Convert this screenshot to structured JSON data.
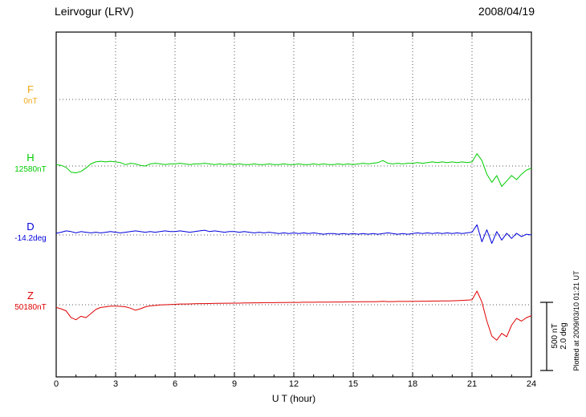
{
  "header": {
    "station": "Leirvogur (LRV)",
    "date": "2008/04/19"
  },
  "axes": {
    "xlabel": "U T (hour)",
    "xticks": [
      0,
      3,
      6,
      9,
      12,
      15,
      18,
      21,
      24
    ]
  },
  "traces": [
    {
      "label": "F",
      "value_label": "0nT",
      "color": "#f0a818"
    },
    {
      "label": "H",
      "value_label": "12580nT",
      "color": "#00cc00"
    },
    {
      "label": "D",
      "value_label": "-14.2deg",
      "color": "#0000dd"
    },
    {
      "label": "Z",
      "value_label": "50180nT",
      "color": "#e00000"
    }
  ],
  "scale_bar": {
    "line1": "500 nT",
    "line2": "2.0 deg"
  },
  "footer_note": "Plotted at 2009/03/10 01:21 UT",
  "chart_data": {
    "type": "line",
    "title": "Leirvogur (LRV) magnetogram 2008/04/19",
    "xlabel": "U T (hour)",
    "x_range": [
      0,
      24
    ],
    "x_step_hours": 0.25,
    "xticks": [
      0,
      3,
      6,
      9,
      12,
      15,
      18,
      21,
      24
    ],
    "grid": "dotted",
    "scale": {
      "nT_per_bar": 500,
      "deg_per_bar": 2.0
    },
    "series": [
      {
        "name": "F",
        "unit": "nT",
        "base_value": 0,
        "color": "#f0a818",
        "values": []
      },
      {
        "name": "H",
        "unit": "nT",
        "base_value": 12580,
        "color": "#00cc00",
        "values": [
          10,
          5,
          -10,
          -45,
          -50,
          -40,
          -15,
          15,
          30,
          35,
          30,
          35,
          30,
          25,
          10,
          20,
          15,
          5,
          0,
          15,
          20,
          15,
          10,
          15,
          15,
          20,
          15,
          10,
          15,
          15,
          20,
          15,
          10,
          15,
          10,
          15,
          10,
          15,
          10,
          10,
          15,
          10,
          10,
          15,
          10,
          10,
          15,
          10,
          10,
          15,
          10,
          10,
          15,
          10,
          15,
          10,
          10,
          15,
          10,
          15,
          10,
          15,
          20,
          15,
          20,
          25,
          40,
          20,
          15,
          20,
          15,
          20,
          20,
          25,
          20,
          25,
          30,
          25,
          30,
          25,
          30,
          25,
          30,
          25,
          30,
          90,
          40,
          -60,
          -120,
          -70,
          -150,
          -110,
          -70,
          -100,
          -60,
          -30,
          -15
        ]
      },
      {
        "name": "D",
        "unit": "deg",
        "base_value": -14.2,
        "color": "#0000dd",
        "values": [
          0.05,
          0.08,
          0.12,
          0.1,
          0.06,
          0.1,
          0.08,
          0.06,
          0.08,
          0.06,
          0.08,
          0.1,
          0.08,
          0.06,
          0.08,
          0.1,
          0.12,
          0.1,
          0.08,
          0.1,
          0.08,
          0.1,
          0.12,
          0.1,
          0.1,
          0.12,
          0.1,
          0.08,
          0.1,
          0.12,
          0.14,
          0.1,
          0.12,
          0.1,
          0.08,
          0.1,
          0.1,
          0.08,
          0.1,
          0.08,
          0.06,
          0.08,
          0.06,
          0.08,
          0.06,
          0.04,
          0.06,
          0.04,
          0.06,
          0.04,
          0.06,
          0.04,
          0.06,
          0.04,
          0.02,
          0.04,
          0.04,
          0.02,
          0.04,
          0.02,
          0.04,
          0.02,
          0.04,
          0.02,
          0.04,
          0.02,
          0.04,
          0.06,
          0.04,
          0.02,
          0.04,
          0.02,
          0.04,
          0.06,
          0.04,
          0.06,
          0.04,
          0.06,
          0.04,
          0.06,
          0.04,
          0.06,
          0.04,
          0.06,
          0.08,
          0.3,
          -0.2,
          0.15,
          -0.25,
          0.1,
          -0.15,
          0.05,
          -0.1,
          0.05,
          -0.05,
          0.02,
          0.0
        ]
      },
      {
        "name": "Z",
        "unit": "nT",
        "base_value": 50180,
        "color": "#e00000",
        "values": [
          -20,
          -30,
          -45,
          -95,
          -110,
          -85,
          -95,
          -65,
          -35,
          -20,
          -15,
          -10,
          -10,
          -12,
          -15,
          -25,
          -40,
          -30,
          -15,
          -8,
          -5,
          -2,
          0,
          2,
          3,
          5,
          5,
          6,
          7,
          8,
          8,
          9,
          10,
          10,
          11,
          11,
          12,
          12,
          13,
          13,
          14,
          14,
          15,
          15,
          15,
          16,
          16,
          17,
          17,
          17,
          18,
          18,
          18,
          19,
          19,
          19,
          20,
          20,
          20,
          21,
          21,
          21,
          22,
          22,
          22,
          23,
          25,
          23,
          23,
          24,
          24,
          24,
          25,
          25,
          26,
          26,
          27,
          27,
          28,
          28,
          29,
          30,
          32,
          34,
          36,
          100,
          20,
          -120,
          -230,
          -260,
          -210,
          -235,
          -150,
          -100,
          -120,
          -95,
          -80
        ]
      }
    ]
  }
}
